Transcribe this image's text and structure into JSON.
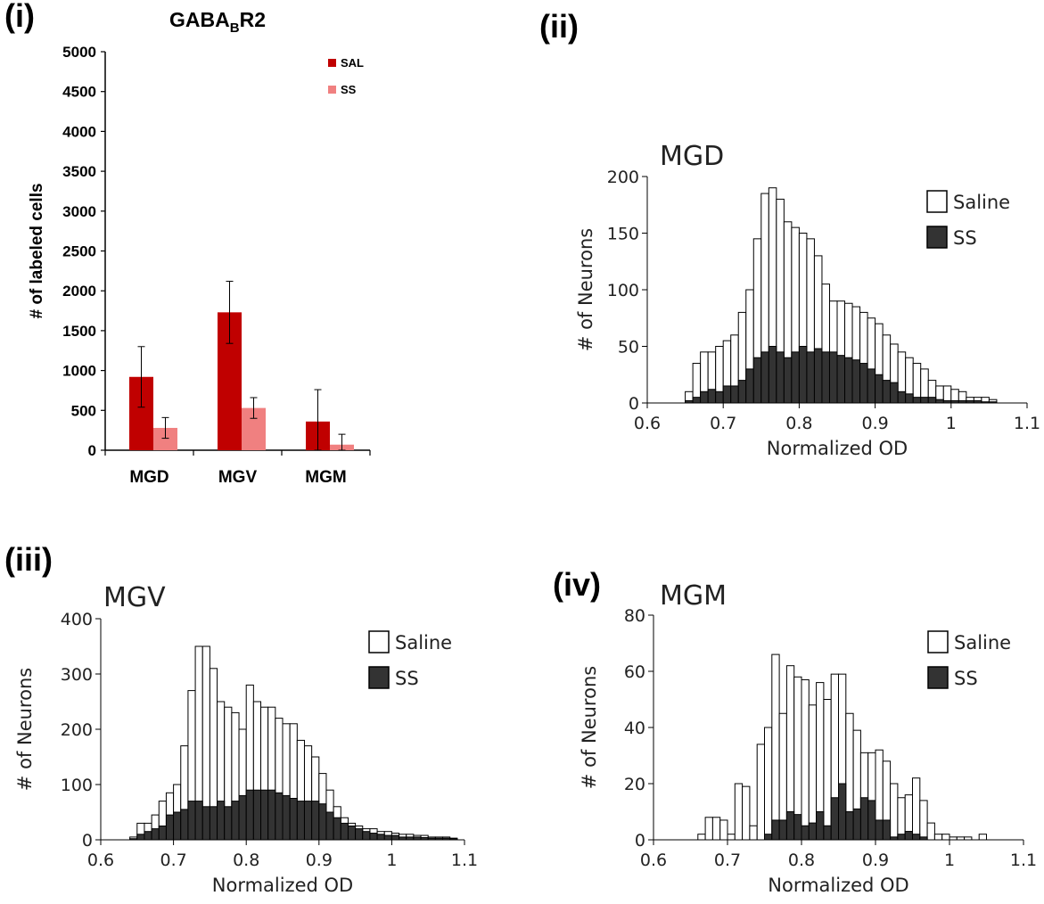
{
  "panels": [
    {
      "id": "i",
      "label": "(i)"
    },
    {
      "id": "ii",
      "label": "(ii)"
    },
    {
      "id": "iii",
      "label": "(iii)"
    },
    {
      "id": "iv",
      "label": "(iv)"
    }
  ],
  "chart_data": [
    {
      "panel": "(i)",
      "type": "bar",
      "title_main": "GABA",
      "title_sub": "B",
      "title_end": "R2",
      "xlabel": "",
      "ylabel": "# of labeled cells",
      "ylim": [
        0,
        5000
      ],
      "yticks": [
        0,
        500,
        1000,
        1500,
        2000,
        2500,
        3000,
        3500,
        4000,
        4500,
        5000
      ],
      "categories": [
        "MGD",
        "MGV",
        "MGM"
      ],
      "legend_position": "top-right",
      "grid": false,
      "series": [
        {
          "name": "SAL",
          "color": "#c00000",
          "values": [
            920,
            1730,
            360
          ],
          "errors": [
            380,
            390,
            400
          ]
        },
        {
          "name": "SS",
          "color": "#f08080",
          "values": [
            280,
            530,
            70
          ],
          "errors": [
            130,
            130,
            130
          ]
        }
      ]
    },
    {
      "panel": "(ii)",
      "type": "bar",
      "title": "MGD",
      "xlabel": "Normalized OD",
      "ylabel": "# of Neurons",
      "xlim": [
        0.6,
        1.1
      ],
      "ylim": [
        0,
        200
      ],
      "xticks": [
        "0.6",
        "0.7",
        "0.8",
        "0.9",
        "1",
        "1.1"
      ],
      "yticks": [
        0,
        50,
        100,
        150,
        200
      ],
      "legend_position": "top-right",
      "grid": false,
      "bin_start": 0.65,
      "bin_width": 0.01,
      "series": [
        {
          "name": "Saline",
          "color": "#ffffff",
          "values": [
            10,
            35,
            45,
            45,
            50,
            55,
            60,
            80,
            100,
            145,
            185,
            190,
            180,
            160,
            155,
            150,
            145,
            130,
            105,
            90,
            90,
            88,
            85,
            80,
            75,
            70,
            60,
            52,
            45,
            40,
            35,
            30,
            20,
            15,
            15,
            12,
            10,
            5,
            5,
            5,
            3,
            0,
            0
          ]
        },
        {
          "name": "SS",
          "color": "#333333",
          "values": [
            2,
            5,
            10,
            12,
            10,
            15,
            15,
            20,
            30,
            40,
            45,
            50,
            45,
            40,
            45,
            50,
            45,
            48,
            45,
            45,
            42,
            40,
            38,
            35,
            30,
            25,
            20,
            18,
            10,
            8,
            5,
            5,
            5,
            3,
            2,
            2,
            2,
            2,
            2,
            1,
            1,
            0,
            0
          ]
        }
      ]
    },
    {
      "panel": "(iii)",
      "type": "bar",
      "title": "MGV",
      "xlabel": "Normalized OD",
      "ylabel": "# of Neurons",
      "xlim": [
        0.6,
        1.1
      ],
      "ylim": [
        0,
        400
      ],
      "xticks": [
        "0.6",
        "0.7",
        "0.8",
        "0.9",
        "1",
        "1.1"
      ],
      "yticks": [
        0,
        100,
        200,
        300,
        400
      ],
      "legend_position": "top-right",
      "grid": false,
      "bin_start": 0.64,
      "bin_width": 0.01,
      "series": [
        {
          "name": "Saline",
          "color": "#ffffff",
          "values": [
            5,
            30,
            30,
            45,
            70,
            85,
            100,
            170,
            270,
            350,
            350,
            310,
            250,
            240,
            230,
            200,
            280,
            250,
            240,
            240,
            220,
            210,
            210,
            180,
            170,
            150,
            120,
            90,
            60,
            40,
            30,
            25,
            20,
            20,
            15,
            15,
            12,
            10,
            10,
            8,
            8,
            5,
            5,
            5,
            3,
            0
          ]
        },
        {
          "name": "SS",
          "color": "#333333",
          "values": [
            2,
            10,
            15,
            20,
            25,
            45,
            50,
            55,
            70,
            70,
            60,
            60,
            70,
            60,
            70,
            80,
            90,
            90,
            90,
            90,
            85,
            80,
            75,
            70,
            70,
            70,
            65,
            50,
            40,
            30,
            25,
            20,
            15,
            12,
            10,
            8,
            8,
            5,
            5,
            5,
            4,
            3,
            3,
            3,
            2,
            0
          ]
        }
      ]
    },
    {
      "panel": "(iv)",
      "type": "bar",
      "title": "MGM",
      "xlabel": "Normalized OD",
      "ylabel": "# of Neurons",
      "xlim": [
        0.6,
        1.1
      ],
      "ylim": [
        0,
        80
      ],
      "xticks": [
        "0.6",
        "0.7",
        "0.8",
        "0.9",
        "1",
        "1.1"
      ],
      "yticks": [
        0,
        20,
        40,
        60,
        80
      ],
      "legend_position": "top-right",
      "grid": false,
      "bin_start": 0.66,
      "bin_width": 0.01,
      "series": [
        {
          "name": "Saline",
          "color": "#ffffff",
          "values": [
            2,
            8,
            8,
            7,
            2,
            20,
            19,
            5,
            34,
            40,
            66,
            45,
            62,
            58,
            57,
            48,
            56,
            50,
            59,
            59,
            45,
            39,
            31,
            31,
            32,
            28,
            20,
            15,
            16,
            22,
            14,
            6,
            2,
            2,
            1,
            1,
            1,
            0,
            2
          ]
        },
        {
          "name": "SS",
          "color": "#333333",
          "values": [
            0,
            0,
            0,
            0,
            0,
            0,
            0,
            0,
            0,
            2,
            7,
            7,
            10,
            9,
            5,
            6,
            10,
            5,
            15,
            20,
            10,
            11,
            15,
            14,
            7,
            7,
            1,
            2,
            3,
            2,
            1,
            0,
            0,
            0,
            0,
            0,
            0,
            0,
            0
          ]
        }
      ]
    }
  ]
}
